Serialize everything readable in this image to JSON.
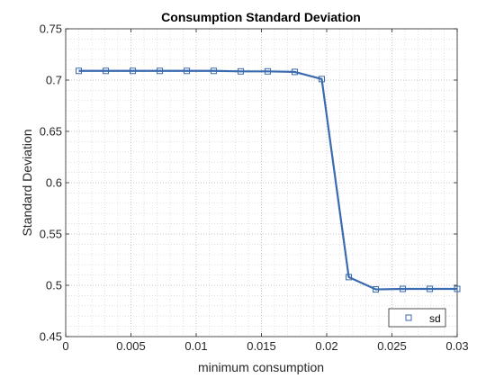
{
  "chart_data": {
    "type": "line",
    "title": "Consumption Standard Deviation",
    "xlabel": "minimum consumption",
    "ylabel": "Standard Deviation",
    "xlim": [
      0,
      0.03
    ],
    "ylim": [
      0.45,
      0.75
    ],
    "xticks": [
      0,
      0.005,
      0.01,
      0.015,
      0.02,
      0.025,
      0.03
    ],
    "xtick_labels": [
      "0",
      "0.005",
      "0.01",
      "0.015",
      "0.02",
      "0.025",
      "0.03"
    ],
    "yticks": [
      0.45,
      0.5,
      0.55,
      0.6,
      0.65,
      0.7,
      0.75
    ],
    "ytick_labels": [
      "0.45",
      "0.5",
      "0.55",
      "0.6",
      "0.65",
      "0.7",
      "0.75"
    ],
    "grid": "major and minor dotted",
    "legend_position": "bottom-right",
    "series": [
      {
        "name": "sd",
        "color": "#3a6aaf",
        "marker": "square",
        "x": [
          0.001,
          0.00307,
          0.00514,
          0.00721,
          0.00928,
          0.01134,
          0.01341,
          0.01548,
          0.01755,
          0.01962,
          0.02169,
          0.02376,
          0.02583,
          0.0279,
          0.03
        ],
        "y": [
          0.709,
          0.709,
          0.709,
          0.709,
          0.709,
          0.709,
          0.7085,
          0.7085,
          0.708,
          0.701,
          0.508,
          0.496,
          0.4965,
          0.4965,
          0.4965
        ]
      }
    ]
  }
}
